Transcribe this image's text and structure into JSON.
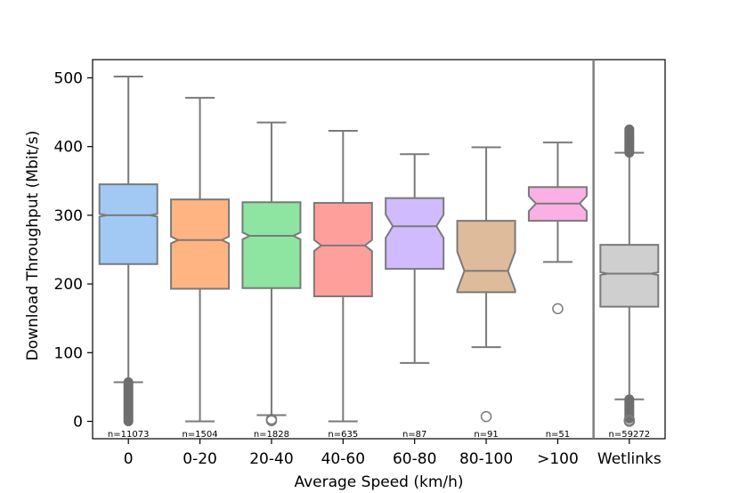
{
  "chart_data": {
    "type": "box",
    "notched": true,
    "xlabel": "Average Speed (km/h)",
    "ylabel": "Download Throughput (Mbit/s)",
    "ylim": [
      -25,
      525
    ],
    "yticks": [
      0,
      100,
      200,
      300,
      400,
      500
    ],
    "grid": false,
    "separator_before": "Wetlinks",
    "boxes": [
      {
        "category": "0",
        "n_label": "n=11073",
        "color": "#a1c9f4",
        "whisker_low": 57,
        "q1": 229,
        "median": 300,
        "q3": 345,
        "whisker_high": 502,
        "notch_low": 298,
        "notch_high": 302,
        "outliers_range": [
          0,
          57
        ],
        "outliers": []
      },
      {
        "category": "0-20",
        "n_label": "n=1504",
        "color": "#ffb482",
        "whisker_low": 0,
        "q1": 193,
        "median": 264,
        "q3": 323,
        "whisker_high": 471,
        "notch_low": 259,
        "notch_high": 269,
        "outliers_range": null,
        "outliers": []
      },
      {
        "category": "20-40",
        "n_label": "n=1828",
        "color": "#8de5a1",
        "whisker_low": 9,
        "q1": 194,
        "median": 270,
        "q3": 319,
        "whisker_high": 435,
        "notch_low": 265,
        "notch_high": 275,
        "outliers_range": null,
        "outliers": [
          1,
          3
        ]
      },
      {
        "category": "40-60",
        "n_label": "n=635",
        "color": "#ff9f9b",
        "whisker_low": 0,
        "q1": 182,
        "median": 256,
        "q3": 318,
        "whisker_high": 423,
        "notch_low": 248,
        "notch_high": 264,
        "outliers_range": null,
        "outliers": []
      },
      {
        "category": "60-80",
        "n_label": "n=87",
        "color": "#d0bbff",
        "whisker_low": 85,
        "q1": 222,
        "median": 284,
        "q3": 325,
        "whisker_high": 389,
        "notch_low": 267,
        "notch_high": 301,
        "outliers_range": null,
        "outliers": []
      },
      {
        "category": "80-100",
        "n_label": "n=91",
        "color": "#debb9b",
        "whisker_low": 108,
        "q1": 188,
        "median": 219,
        "q3": 292,
        "whisker_high": 399,
        "notch_low": 191,
        "notch_high": 247,
        "outliers_range": null,
        "outliers": [
          7
        ]
      },
      {
        "category": ">100",
        "n_label": "n=51",
        "color": "#fab0e4",
        "whisker_low": 232,
        "q1": 292,
        "median": 317,
        "q3": 341,
        "whisker_high": 406,
        "notch_low": 306,
        "notch_high": 328,
        "outliers_range": null,
        "outliers": [
          164
        ]
      },
      {
        "category": "Wetlinks",
        "n_label": "n=59272",
        "color": "#cfcfcf",
        "whisker_low": 32,
        "q1": 167,
        "median": 215,
        "q3": 257,
        "whisker_high": 391,
        "notch_low": 213,
        "notch_high": 217,
        "outliers_range_high": [
          391,
          425
        ],
        "outliers_range": [
          4,
          32
        ],
        "outliers": [
          0,
          2
        ]
      }
    ]
  }
}
